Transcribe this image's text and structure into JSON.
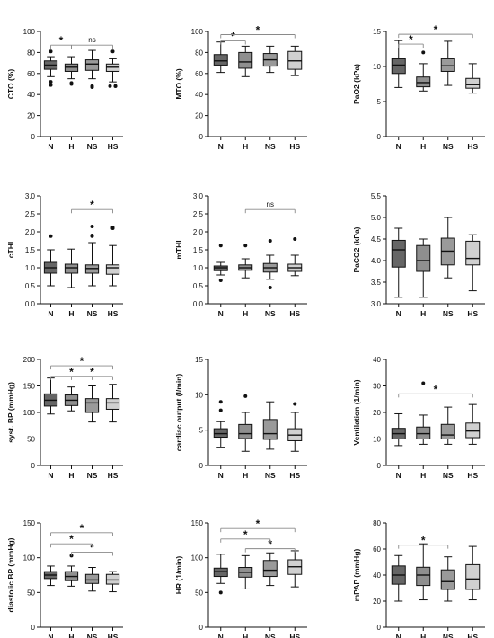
{
  "colors": {
    "N": "#666666",
    "H": "#8f8f8f",
    "NS": "#9a9a9a",
    "HS": "#d0d0d0",
    "sig": "#8a8a8a",
    "axis": "#111111"
  },
  "chart_data": [
    {
      "type": "box",
      "ylabel": "CTO (%)",
      "ylim": [
        0,
        100
      ],
      "yticks": [
        0,
        20,
        40,
        60,
        80,
        100
      ],
      "categories": [
        "N",
        "H",
        "NS",
        "HS"
      ],
      "series": [
        {
          "name": "N",
          "min": 57,
          "q1": 64,
          "median": 68,
          "q3": 72,
          "max": 76,
          "outliers": [
            81,
            52,
            49
          ]
        },
        {
          "name": "H",
          "min": 55,
          "q1": 62,
          "median": 66,
          "q3": 69,
          "max": 76,
          "outliers": [
            51,
            50
          ]
        },
        {
          "name": "NS",
          "min": 55,
          "q1": 63,
          "median": 69,
          "q3": 73,
          "max": 82,
          "outliers": [
            48,
            47
          ]
        },
        {
          "name": "HS",
          "min": 52,
          "q1": 62,
          "median": 66,
          "q3": 69,
          "max": 74,
          "outliers": [
            81,
            48,
            48,
            48
          ]
        }
      ],
      "significance": [
        {
          "from": "N",
          "to": "H",
          "label": "*",
          "y": 87
        },
        {
          "from": "H",
          "to": "HS",
          "label": "ns",
          "y": 87
        }
      ]
    },
    {
      "type": "box",
      "ylabel": "MTO (%)",
      "ylim": [
        0,
        100
      ],
      "yticks": [
        0,
        20,
        40,
        60,
        80,
        100
      ],
      "categories": [
        "N",
        "H",
        "NS",
        "HS"
      ],
      "series": [
        {
          "name": "N",
          "min": 61,
          "q1": 68,
          "median": 72,
          "q3": 78,
          "max": 90,
          "outliers": []
        },
        {
          "name": "H",
          "min": 57,
          "q1": 65,
          "median": 71,
          "q3": 80,
          "max": 86,
          "outliers": []
        },
        {
          "name": "NS",
          "min": 61,
          "q1": 67,
          "median": 73,
          "q3": 79,
          "max": 86,
          "outliers": []
        },
        {
          "name": "HS",
          "min": 58,
          "q1": 64,
          "median": 72,
          "q3": 81,
          "max": 86,
          "outliers": []
        }
      ],
      "significance": [
        {
          "from": "N",
          "to": "H",
          "label": "*",
          "y": 91
        },
        {
          "from": "N",
          "to": "HS",
          "label": "*",
          "y": 97
        }
      ]
    },
    {
      "type": "box",
      "ylabel": "PaO2 (kPa)",
      "ylim": [
        0,
        15
      ],
      "yticks": [
        0,
        5,
        10,
        15
      ],
      "categories": [
        "N",
        "H",
        "NS",
        "HS"
      ],
      "series": [
        {
          "name": "N",
          "min": 7.0,
          "q1": 9.0,
          "median": 10.2,
          "q3": 11.1,
          "max": 13.7,
          "outliers": []
        },
        {
          "name": "H",
          "min": 6.5,
          "q1": 7.1,
          "median": 7.7,
          "q3": 8.5,
          "max": 10.4,
          "outliers": [
            12.0
          ]
        },
        {
          "name": "NS",
          "min": 7.3,
          "q1": 9.3,
          "median": 10.1,
          "q3": 11.1,
          "max": 13.6,
          "outliers": []
        },
        {
          "name": "HS",
          "min": 6.2,
          "q1": 6.9,
          "median": 7.4,
          "q3": 8.3,
          "max": 10.4,
          "outliers": []
        }
      ],
      "significance": [
        {
          "from": "N",
          "to": "H",
          "label": "*",
          "y": 13.2
        },
        {
          "from": "N",
          "to": "HS",
          "label": "*",
          "y": 14.6
        }
      ]
    },
    {
      "type": "box",
      "ylabel": "cTHI",
      "ylim": [
        0.0,
        3.0
      ],
      "yticks": [
        0.0,
        0.5,
        1.0,
        1.5,
        2.0,
        2.5,
        3.0
      ],
      "categories": [
        "N",
        "H",
        "NS",
        "HS"
      ],
      "series": [
        {
          "name": "N",
          "min": 0.5,
          "q1": 0.85,
          "median": 1.0,
          "q3": 1.15,
          "max": 1.5,
          "outliers": [
            1.88
          ]
        },
        {
          "name": "H",
          "min": 0.45,
          "q1": 0.85,
          "median": 1.0,
          "q3": 1.1,
          "max": 1.52,
          "outliers": []
        },
        {
          "name": "NS",
          "min": 0.5,
          "q1": 0.85,
          "median": 0.98,
          "q3": 1.08,
          "max": 1.7,
          "outliers": [
            2.15,
            1.9,
            1.88
          ]
        },
        {
          "name": "HS",
          "min": 0.5,
          "q1": 0.82,
          "median": 1.0,
          "q3": 1.08,
          "max": 1.62,
          "outliers": [
            2.12,
            2.1
          ]
        }
      ],
      "significance": [
        {
          "from": "H",
          "to": "HS",
          "label": "*",
          "y": 2.62
        }
      ]
    },
    {
      "type": "box",
      "ylabel": "mTHI",
      "ylim": [
        0.0,
        3.0
      ],
      "yticks": [
        0.0,
        0.5,
        1.0,
        1.5,
        2.0,
        2.5,
        3.0
      ],
      "categories": [
        "N",
        "H",
        "NS",
        "HS"
      ],
      "series": [
        {
          "name": "N",
          "min": 0.8,
          "q1": 0.92,
          "median": 1.0,
          "q3": 1.05,
          "max": 1.15,
          "outliers": [
            1.62,
            0.65
          ]
        },
        {
          "name": "H",
          "min": 0.72,
          "q1": 0.93,
          "median": 1.0,
          "q3": 1.08,
          "max": 1.25,
          "outliers": [
            1.62
          ]
        },
        {
          "name": "NS",
          "min": 0.68,
          "q1": 0.88,
          "median": 1.0,
          "q3": 1.12,
          "max": 1.35,
          "outliers": [
            1.75,
            0.45
          ]
        },
        {
          "name": "HS",
          "min": 0.78,
          "q1": 0.9,
          "median": 1.0,
          "q3": 1.1,
          "max": 1.35,
          "outliers": [
            1.8
          ]
        }
      ],
      "significance": [
        {
          "from": "H",
          "to": "HS",
          "label": "ns",
          "y": 2.62
        }
      ]
    },
    {
      "type": "box",
      "ylabel": "PaCO2 (kPa)",
      "ylim": [
        3.0,
        5.5
      ],
      "yticks": [
        3.0,
        3.5,
        4.0,
        4.5,
        5.0,
        5.5
      ],
      "categories": [
        "N",
        "H",
        "NS",
        "HS"
      ],
      "series": [
        {
          "name": "N",
          "min": 3.15,
          "q1": 3.85,
          "median": 4.25,
          "q3": 4.47,
          "max": 4.75,
          "outliers": []
        },
        {
          "name": "H",
          "min": 3.15,
          "q1": 3.75,
          "median": 4.0,
          "q3": 4.35,
          "max": 4.5,
          "outliers": []
        },
        {
          "name": "NS",
          "min": 3.6,
          "q1": 3.9,
          "median": 4.22,
          "q3": 4.52,
          "max": 5.0,
          "outliers": []
        },
        {
          "name": "HS",
          "min": 3.3,
          "q1": 3.9,
          "median": 4.05,
          "q3": 4.45,
          "max": 4.6,
          "outliers": []
        }
      ],
      "significance": []
    },
    {
      "type": "box",
      "ylabel": "syst. BP (mmHg)",
      "ylim": [
        0,
        200
      ],
      "yticks": [
        0,
        50,
        100,
        150,
        200
      ],
      "categories": [
        "N",
        "H",
        "NS",
        "HS"
      ],
      "series": [
        {
          "name": "N",
          "min": 97,
          "q1": 112,
          "median": 123,
          "q3": 135,
          "max": 165,
          "outliers": []
        },
        {
          "name": "H",
          "min": 103,
          "q1": 113,
          "median": 123,
          "q3": 133,
          "max": 148,
          "outliers": []
        },
        {
          "name": "NS",
          "min": 82,
          "q1": 100,
          "median": 118,
          "q3": 126,
          "max": 150,
          "outliers": []
        },
        {
          "name": "HS",
          "min": 82,
          "q1": 106,
          "median": 118,
          "q3": 126,
          "max": 153,
          "outliers": []
        }
      ],
      "significance": [
        {
          "from": "N",
          "to": "NS",
          "label": "*",
          "y": 168
        },
        {
          "from": "H",
          "to": "HS",
          "label": "*",
          "y": 168
        },
        {
          "from": "N",
          "to": "HS",
          "label": "*",
          "y": 188
        }
      ]
    },
    {
      "type": "box",
      "ylabel": "cardiac output (l/min)",
      "ylim": [
        0,
        15
      ],
      "yticks": [
        0,
        5,
        10,
        15
      ],
      "categories": [
        "N",
        "H",
        "NS",
        "HS"
      ],
      "series": [
        {
          "name": "N",
          "min": 2.5,
          "q1": 4.0,
          "median": 4.5,
          "q3": 5.2,
          "max": 6.2,
          "outliers": [
            9.0,
            7.8
          ]
        },
        {
          "name": "H",
          "min": 2.0,
          "q1": 3.8,
          "median": 4.5,
          "q3": 5.8,
          "max": 7.5,
          "outliers": [
            9.8
          ]
        },
        {
          "name": "NS",
          "min": 2.3,
          "q1": 3.7,
          "median": 4.5,
          "q3": 6.5,
          "max": 9.0,
          "outliers": []
        },
        {
          "name": "HS",
          "min": 2.0,
          "q1": 3.5,
          "median": 4.3,
          "q3": 5.2,
          "max": 7.5,
          "outliers": [
            8.7
          ]
        }
      ],
      "significance": []
    },
    {
      "type": "box",
      "ylabel": "Ventilation (1/min)",
      "ylim": [
        0,
        40
      ],
      "yticks": [
        0,
        10,
        20,
        30,
        40
      ],
      "categories": [
        "N",
        "H",
        "NS",
        "HS"
      ],
      "series": [
        {
          "name": "N",
          "min": 7.5,
          "q1": 10.0,
          "median": 12.0,
          "q3": 14.0,
          "max": 19.5,
          "outliers": []
        },
        {
          "name": "H",
          "min": 8.0,
          "q1": 10.0,
          "median": 12.0,
          "q3": 14.5,
          "max": 19.0,
          "outliers": [
            31.0
          ]
        },
        {
          "name": "NS",
          "min": 8.0,
          "q1": 10.0,
          "median": 11.5,
          "q3": 15.5,
          "max": 22.0,
          "outliers": []
        },
        {
          "name": "HS",
          "min": 8.0,
          "q1": 10.5,
          "median": 13.0,
          "q3": 16.0,
          "max": 23.0,
          "outliers": []
        }
      ],
      "significance": [
        {
          "from": "N",
          "to": "HS",
          "label": "*",
          "y": 27
        }
      ]
    },
    {
      "type": "box",
      "ylabel": "diastolic BP (mmHg)",
      "ylim": [
        0,
        150
      ],
      "yticks": [
        0,
        50,
        100,
        150
      ],
      "categories": [
        "N",
        "H",
        "NS",
        "HS"
      ],
      "series": [
        {
          "name": "N",
          "min": 60,
          "q1": 70,
          "median": 75,
          "q3": 80,
          "max": 88,
          "outliers": []
        },
        {
          "name": "H",
          "min": 59,
          "q1": 67,
          "median": 73,
          "q3": 80,
          "max": 88,
          "outliers": [
            103
          ]
        },
        {
          "name": "NS",
          "min": 52,
          "q1": 63,
          "median": 68,
          "q3": 76,
          "max": 86,
          "outliers": []
        },
        {
          "name": "HS",
          "min": 51,
          "q1": 62,
          "median": 68,
          "q3": 76,
          "max": 80,
          "outliers": []
        }
      ],
      "significance": [
        {
          "from": "H",
          "to": "HS",
          "label": "*",
          "y": 108
        },
        {
          "from": "N",
          "to": "NS",
          "label": "*",
          "y": 120
        },
        {
          "from": "N",
          "to": "HS",
          "label": "*",
          "y": 136
        }
      ]
    },
    {
      "type": "box",
      "ylabel": "HR (1/min)",
      "ylim": [
        0,
        150
      ],
      "yticks": [
        0,
        50,
        100,
        150
      ],
      "categories": [
        "N",
        "H",
        "NS",
        "HS"
      ],
      "series": [
        {
          "name": "N",
          "min": 63,
          "q1": 73,
          "median": 80,
          "q3": 85,
          "max": 105,
          "outliers": [
            50
          ]
        },
        {
          "name": "H",
          "min": 55,
          "q1": 72,
          "median": 79,
          "q3": 86,
          "max": 103,
          "outliers": []
        },
        {
          "name": "NS",
          "min": 60,
          "q1": 73,
          "median": 82,
          "q3": 96,
          "max": 107,
          "outliers": []
        },
        {
          "name": "HS",
          "min": 58,
          "q1": 76,
          "median": 87,
          "q3": 97,
          "max": 110,
          "outliers": []
        }
      ],
      "significance": [
        {
          "from": "H",
          "to": "HS",
          "label": "*",
          "y": 113
        },
        {
          "from": "N",
          "to": "NS",
          "label": "*",
          "y": 127
        },
        {
          "from": "N",
          "to": "HS",
          "label": "*",
          "y": 142
        }
      ]
    },
    {
      "type": "box",
      "ylabel": "mPAP (mmHg)",
      "ylim": [
        0,
        80
      ],
      "yticks": [
        0,
        20,
        40,
        60,
        80
      ],
      "categories": [
        "N",
        "H",
        "NS",
        "HS"
      ],
      "series": [
        {
          "name": "N",
          "min": 20,
          "q1": 33,
          "median": 40,
          "q3": 47,
          "max": 55,
          "outliers": []
        },
        {
          "name": "H",
          "min": 21,
          "q1": 32,
          "median": 40,
          "q3": 46,
          "max": 64,
          "outliers": []
        },
        {
          "name": "NS",
          "min": 20,
          "q1": 29,
          "median": 35,
          "q3": 44,
          "max": 54,
          "outliers": []
        },
        {
          "name": "HS",
          "min": 21,
          "q1": 29,
          "median": 37,
          "q3": 48,
          "max": 62,
          "outliers": []
        }
      ],
      "significance": [
        {
          "from": "N",
          "to": "NS",
          "label": "*",
          "y": 63
        }
      ]
    }
  ]
}
